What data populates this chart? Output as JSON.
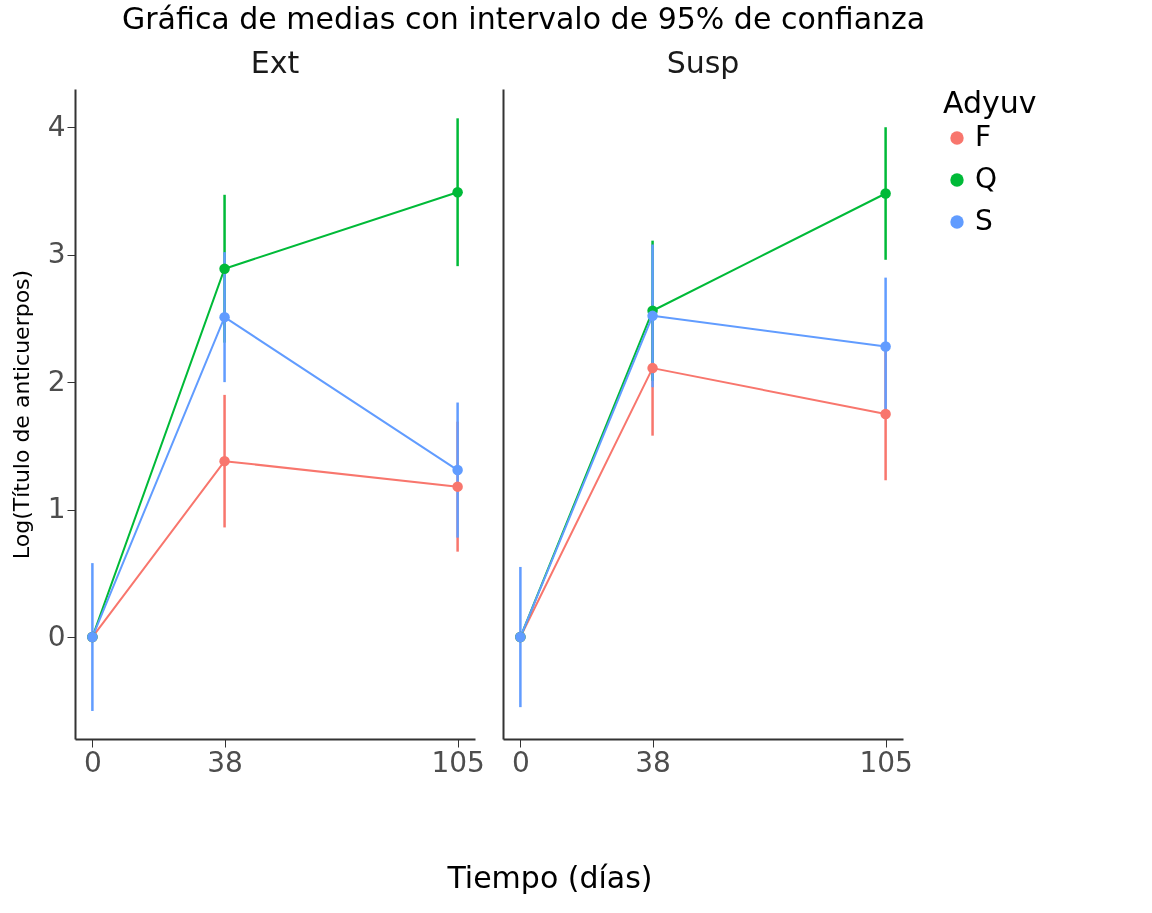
{
  "chart_data": [
    {
      "type": "line",
      "title": "Gráfica de medias con intervalo de 95% de confianza",
      "subtitle": "Ext",
      "xlabel": "Tiempo (días)",
      "ylabel": "Log(Título de anticuerpos)",
      "x": [
        0,
        38,
        105
      ],
      "xlim": [
        -5,
        110
      ],
      "xticks": [
        0,
        38,
        105
      ],
      "ylim": [
        -0.8,
        4.3
      ],
      "yticks": [
        0,
        1,
        2,
        3,
        4
      ],
      "marker": "circle",
      "legend": "right",
      "legend_title": "Adyuv",
      "grid": false,
      "series": [
        {
          "name": "F",
          "color": "#f8766d",
          "values": [
            0,
            1.38,
            1.18
          ],
          "errors": [
            null,
            0.52,
            0.51
          ]
        },
        {
          "name": "Q",
          "color": "#00ba38",
          "values": [
            0,
            2.89,
            3.49
          ],
          "errors": [
            null,
            0.58,
            0.58
          ]
        },
        {
          "name": "S",
          "color": "#619cff",
          "values": [
            0,
            2.51,
            1.31
          ],
          "errors": [
            0.58,
            0.51,
            0.53
          ]
        }
      ]
    },
    {
      "type": "line",
      "subtitle": "Susp",
      "x": [
        0,
        38,
        105
      ],
      "xlim": [
        -5,
        110
      ],
      "xticks": [
        0,
        38,
        105
      ],
      "ylim": [
        -0.8,
        4.3
      ],
      "yticks": [
        0,
        1,
        2,
        3,
        4
      ],
      "tick_labels": "x",
      "marker": "circle",
      "legend": "right",
      "grid": false,
      "series": [
        {
          "name": "F",
          "color": "#f8766d",
          "values": [
            0,
            2.11,
            1.75
          ],
          "errors": [
            null,
            0.53,
            0.52
          ]
        },
        {
          "name": "Q",
          "color": "#00ba38",
          "values": [
            0,
            2.56,
            3.48
          ],
          "errors": [
            null,
            0.55,
            0.52
          ]
        },
        {
          "name": "S",
          "color": "#619cff",
          "values": [
            0,
            2.52,
            2.28
          ],
          "errors": [
            0.55,
            0.56,
            0.54
          ]
        }
      ]
    }
  ]
}
